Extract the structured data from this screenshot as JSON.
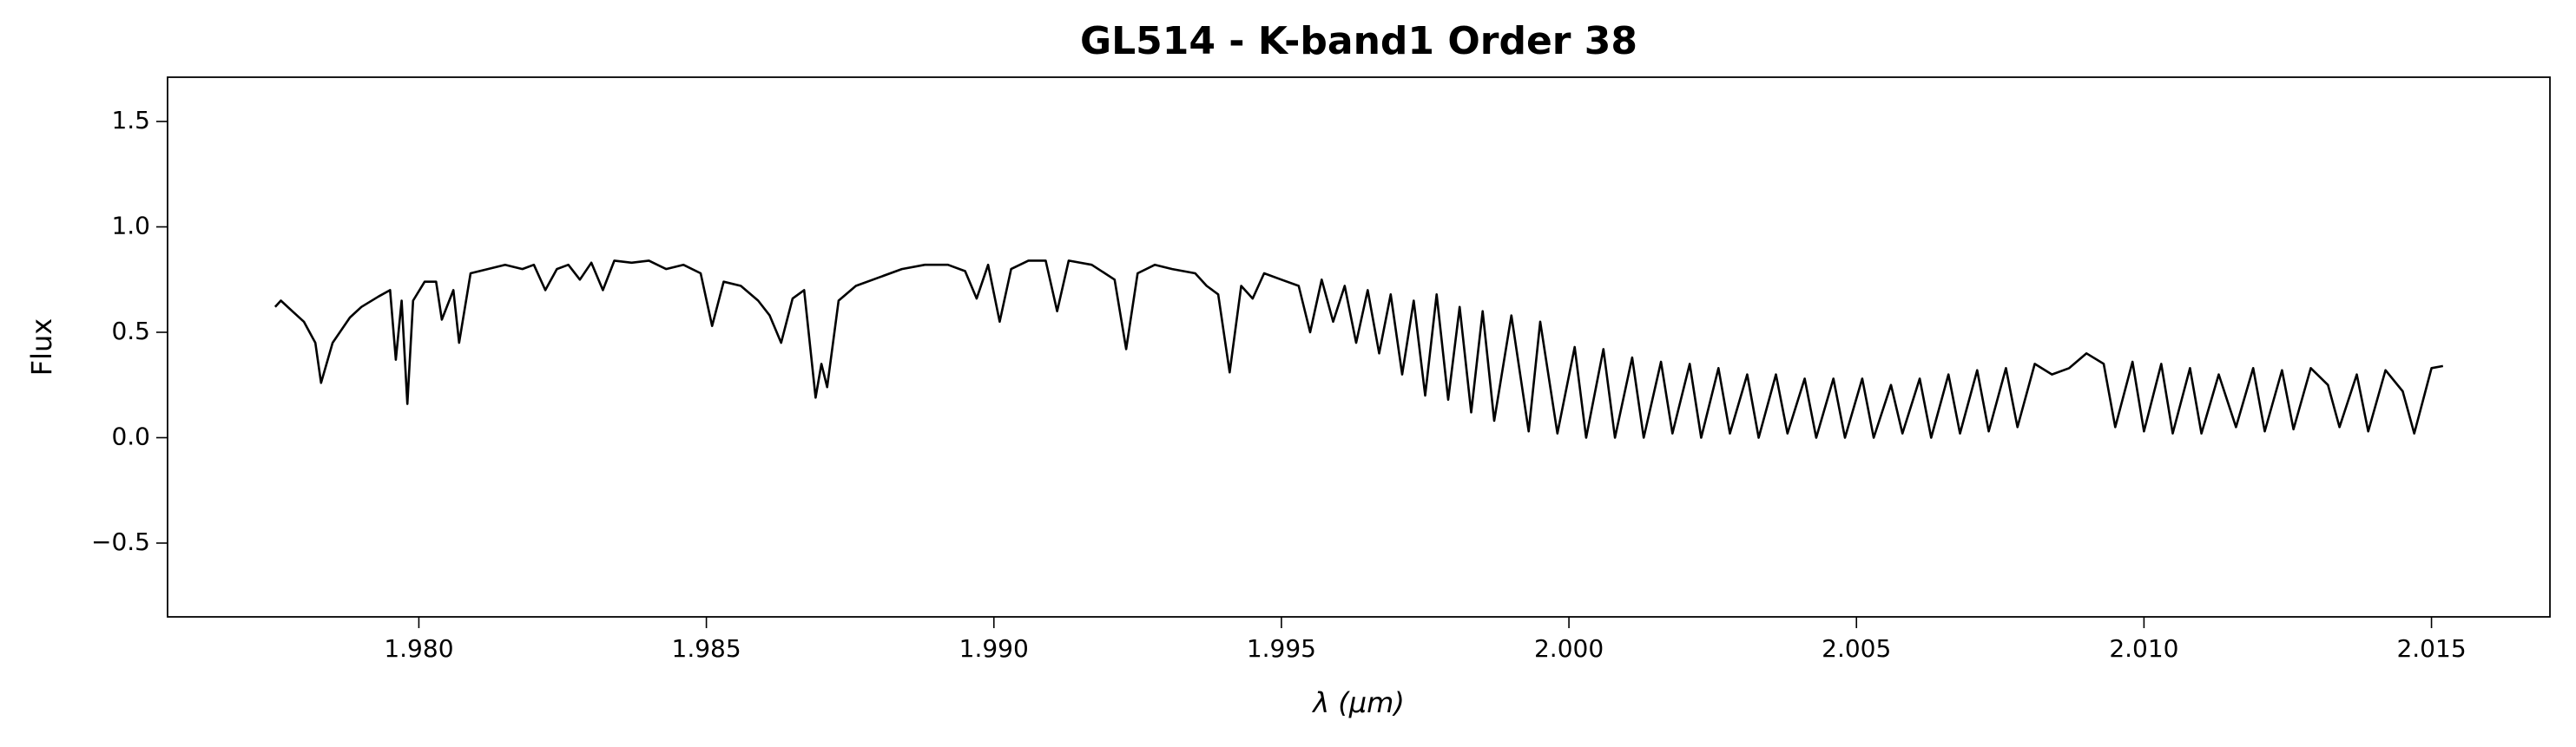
{
  "chart_data": {
    "type": "line",
    "title": "GL514 - K-band1 Order 38",
    "xlabel": "λ (μm)",
    "ylabel": "Flux",
    "color": "#000000",
    "x": [
      1.9775,
      1.9776,
      1.9778,
      1.978,
      1.9782,
      1.9783,
      1.9785,
      1.9788,
      1.979,
      1.9793,
      1.9795,
      1.9796,
      1.9797,
      1.9798,
      1.9799,
      1.9801,
      1.9803,
      1.9804,
      1.9806,
      1.9807,
      1.9809,
      1.9812,
      1.9815,
      1.9818,
      1.982,
      1.9822,
      1.9824,
      1.9826,
      1.9828,
      1.983,
      1.9832,
      1.9834,
      1.9837,
      1.984,
      1.9843,
      1.9846,
      1.9849,
      1.9851,
      1.9853,
      1.9856,
      1.9859,
      1.9861,
      1.9863,
      1.9865,
      1.9867,
      1.9869,
      1.987,
      1.9871,
      1.9873,
      1.9876,
      1.988,
      1.9884,
      1.9888,
      1.9892,
      1.9895,
      1.9897,
      1.9899,
      1.9901,
      1.9903,
      1.9906,
      1.9909,
      1.9911,
      1.9913,
      1.9917,
      1.9921,
      1.9923,
      1.9925,
      1.9928,
      1.9931,
      1.9935,
      1.9937,
      1.9939,
      1.9941,
      1.9943,
      1.9945,
      1.9947,
      1.995,
      1.9953,
      1.9955,
      1.9957,
      1.9959,
      1.9961,
      1.9963,
      1.9965,
      1.9967,
      1.9969,
      1.9971,
      1.9973,
      1.9975,
      1.9977,
      1.9979,
      1.9981,
      1.9983,
      1.9985,
      1.9987,
      1.999,
      1.9993,
      1.9995,
      1.9998,
      2.0001,
      2.0003,
      2.0006,
      2.0008,
      2.0011,
      2.0013,
      2.0016,
      2.0018,
      2.0021,
      2.0023,
      2.0026,
      2.0028,
      2.0031,
      2.0033,
      2.0036,
      2.0038,
      2.0041,
      2.0043,
      2.0046,
      2.0048,
      2.0051,
      2.0053,
      2.0056,
      2.0058,
      2.0061,
      2.0063,
      2.0066,
      2.0068,
      2.0071,
      2.0073,
      2.0076,
      2.0078,
      2.0081,
      2.0084,
      2.0087,
      2.009,
      2.0093,
      2.0095,
      2.0098,
      2.01,
      2.0103,
      2.0105,
      2.0108,
      2.011,
      2.0113,
      2.0116,
      2.0119,
      2.0121,
      2.0124,
      2.0126,
      2.0129,
      2.0132,
      2.0134,
      2.0137,
      2.0139,
      2.0142,
      2.0145,
      2.0147,
      2.015,
      2.0152
    ],
    "values": [
      0.62,
      0.65,
      0.6,
      0.55,
      0.45,
      0.26,
      0.45,
      0.57,
      0.62,
      0.67,
      0.7,
      0.37,
      0.65,
      0.16,
      0.65,
      0.74,
      0.74,
      0.56,
      0.7,
      0.45,
      0.78,
      0.8,
      0.82,
      0.8,
      0.82,
      0.7,
      0.8,
      0.82,
      0.75,
      0.83,
      0.7,
      0.84,
      0.83,
      0.84,
      0.8,
      0.82,
      0.78,
      0.53,
      0.74,
      0.72,
      0.65,
      0.58,
      0.45,
      0.66,
      0.7,
      0.19,
      0.35,
      0.24,
      0.65,
      0.72,
      0.76,
      0.8,
      0.82,
      0.82,
      0.79,
      0.66,
      0.82,
      0.55,
      0.8,
      0.84,
      0.84,
      0.6,
      0.84,
      0.82,
      0.75,
      0.42,
      0.78,
      0.82,
      0.8,
      0.78,
      0.72,
      0.68,
      0.31,
      0.72,
      0.66,
      0.78,
      0.75,
      0.72,
      0.5,
      0.75,
      0.55,
      0.72,
      0.45,
      0.7,
      0.4,
      0.68,
      0.3,
      0.65,
      0.2,
      0.68,
      0.18,
      0.62,
      0.12,
      0.6,
      0.08,
      0.58,
      0.03,
      0.55,
      0.02,
      0.43,
      0.0,
      0.42,
      0.0,
      0.38,
      0.0,
      0.36,
      0.02,
      0.35,
      0.0,
      0.33,
      0.02,
      0.3,
      0.0,
      0.3,
      0.02,
      0.28,
      0.0,
      0.28,
      0.0,
      0.28,
      0.0,
      0.25,
      0.02,
      0.28,
      0.0,
      0.3,
      0.02,
      0.32,
      0.03,
      0.33,
      0.05,
      0.35,
      0.3,
      0.33,
      0.4,
      0.35,
      0.05,
      0.36,
      0.03,
      0.35,
      0.02,
      0.33,
      0.02,
      0.3,
      0.05,
      0.33,
      0.03,
      0.32,
      0.04,
      0.33,
      0.25,
      0.05,
      0.3,
      0.03,
      0.32,
      0.22,
      0.02,
      0.33,
      0.34
    ],
    "xlim": [
      1.97563,
      2.01706
    ],
    "ylim": [
      -0.85,
      1.71
    ],
    "xticks": [
      {
        "value": 1.98,
        "label": "1.980"
      },
      {
        "value": 1.985,
        "label": "1.985"
      },
      {
        "value": 1.99,
        "label": "1.990"
      },
      {
        "value": 1.995,
        "label": "1.995"
      },
      {
        "value": 2.0,
        "label": "2.000"
      },
      {
        "value": 2.005,
        "label": "2.005"
      },
      {
        "value": 2.01,
        "label": "2.010"
      },
      {
        "value": 2.015,
        "label": "2.015"
      }
    ],
    "yticks": [
      {
        "value": -0.5,
        "label": "−0.5"
      },
      {
        "value": 0,
        "label": "0.0"
      },
      0.5,
      {
        "value": 1,
        "label": "1.0"
      },
      1.5
    ]
  }
}
